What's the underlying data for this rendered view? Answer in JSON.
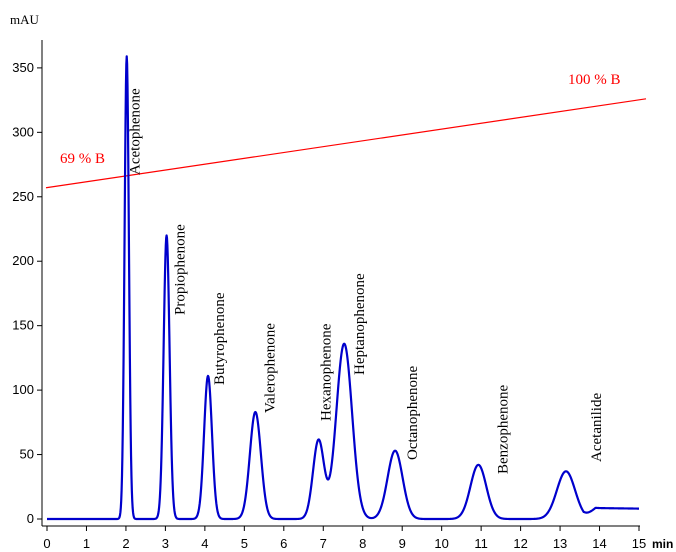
{
  "chart_data": {
    "type": "line",
    "ylabel": "mAU",
    "xlabel": "min",
    "xlim": [
      0,
      15
    ],
    "ylim": [
      0,
      360
    ],
    "x_ticks": [
      0,
      1,
      2,
      3,
      4,
      5,
      6,
      7,
      8,
      9,
      10,
      11,
      12,
      13,
      14,
      15
    ],
    "y_ticks": [
      0,
      50,
      100,
      150,
      200,
      250,
      300,
      350
    ],
    "series": [
      {
        "color": "#0000cc",
        "baseline": 0,
        "peaks": [
          {
            "label": "Acetophenone",
            "time": 2.02,
            "height": 359,
            "width": 0.055
          },
          {
            "label": "Propiophenone",
            "time": 3.03,
            "height": 220,
            "width": 0.075
          },
          {
            "label": "Butyrophenone",
            "time": 4.08,
            "height": 111,
            "width": 0.1
          },
          {
            "label": "Valerophenone",
            "time": 5.28,
            "height": 83,
            "width": 0.14
          },
          {
            "label": "Hexanophenone",
            "time": 6.88,
            "height": 61,
            "width": 0.14
          },
          {
            "label": "Heptanophenone",
            "time": 7.53,
            "height": 136,
            "width": 0.2
          },
          {
            "label": "Octanophenone",
            "time": 8.82,
            "height": 53,
            "width": 0.19
          },
          {
            "label": "Benzophenone",
            "time": 10.93,
            "height": 42,
            "width": 0.2
          },
          {
            "label": "Acetanilide",
            "time": 13.15,
            "height": 37,
            "width": 0.23
          }
        ]
      }
    ],
    "gradient": {
      "color": "#ff0000",
      "start_label": "69 % B",
      "end_label": "100 % B",
      "start_y": 257,
      "end_y": 326
    }
  }
}
